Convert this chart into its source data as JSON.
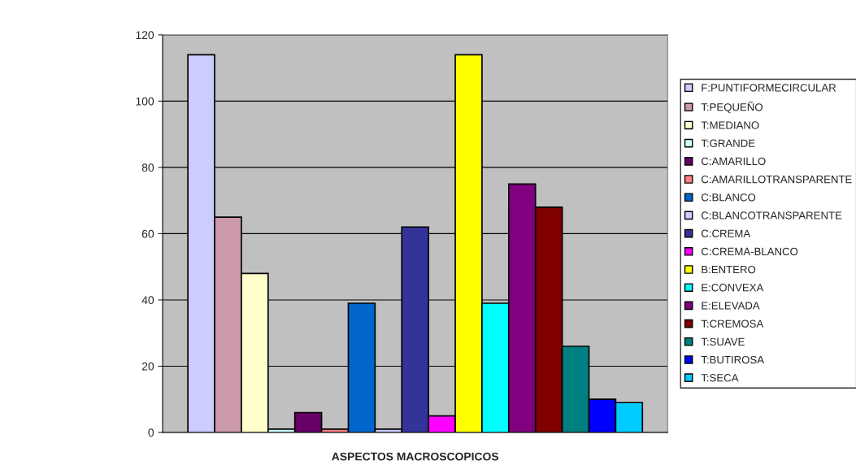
{
  "chart_data": {
    "type": "bar",
    "xlabel": "ASPECTOS MACROSCOPICOS",
    "categories": [
      null
    ],
    "series": [
      {
        "name": "F:PUNTIFORMECIRCULAR",
        "color": "#ccccff",
        "values": [
          114
        ]
      },
      {
        "name": "T:PEQUEÑO",
        "color": "#cc99aa",
        "values": [
          65
        ]
      },
      {
        "name": "T:MEDIANO",
        "color": "#ffffcc",
        "values": [
          48
        ]
      },
      {
        "name": "T:GRANDE",
        "color": "#ccffff",
        "values": [
          1
        ]
      },
      {
        "name": "C:AMARILLO",
        "color": "#660066",
        "values": [
          6
        ]
      },
      {
        "name": "C:AMARILLOTRANSPARENTE",
        "color": "#ff8080",
        "values": [
          1
        ]
      },
      {
        "name": "C:BLANCO",
        "color": "#0066cc",
        "values": [
          39
        ]
      },
      {
        "name": "C:BLANCOTRANSPARENTE",
        "color": "#ccccff",
        "values": [
          1
        ]
      },
      {
        "name": "C:CREMA",
        "color": "#333399",
        "values": [
          62
        ]
      },
      {
        "name": "C:CREMA-BLANCO",
        "color": "#ff00ff",
        "values": [
          5
        ]
      },
      {
        "name": "B:ENTERO",
        "color": "#ffff00",
        "values": [
          114
        ]
      },
      {
        "name": "E:CONVEXA",
        "color": "#00ffff",
        "values": [
          39
        ]
      },
      {
        "name": "E:ELEVADA",
        "color": "#800080",
        "values": [
          75
        ]
      },
      {
        "name": "T:CREMOSA",
        "color": "#800000",
        "values": [
          68
        ]
      },
      {
        "name": "T:SUAVE",
        "color": "#008080",
        "values": [
          26
        ]
      },
      {
        "name": "T:BUTIROSA",
        "color": "#0000ff",
        "values": [
          10
        ]
      },
      {
        "name": "T:SECA",
        "color": "#00ccff",
        "values": [
          9
        ]
      }
    ],
    "ylim": [
      0,
      120
    ],
    "yticks": [
      0,
      20,
      40,
      60,
      80,
      100,
      120
    ],
    "grid": "y",
    "legend": "right"
  }
}
